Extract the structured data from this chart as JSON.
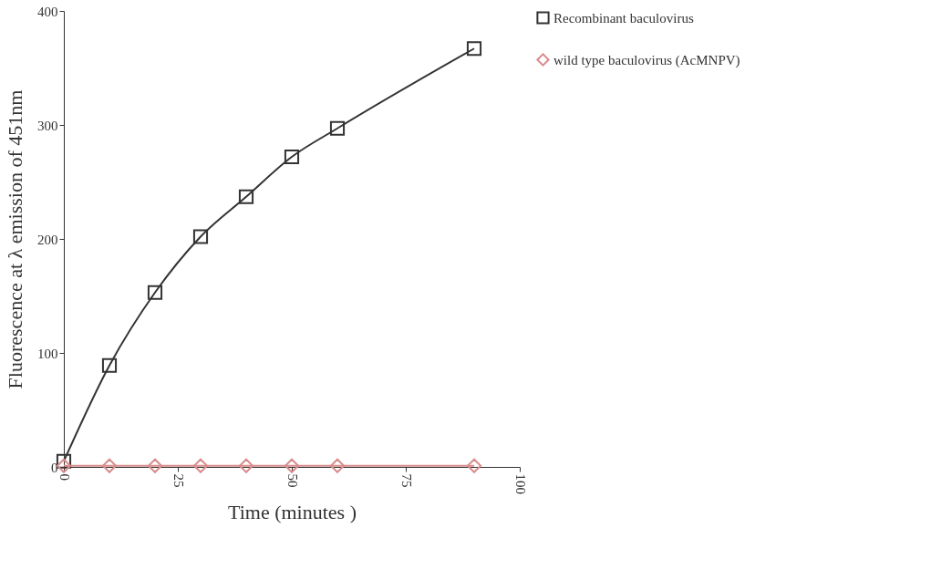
{
  "chart_data": {
    "type": "line",
    "xlabel": "Time (minutes )",
    "ylabel": "Fluorescence at λ emission of 451nm",
    "xlim": [
      0,
      100
    ],
    "xticks": [
      0,
      25,
      50,
      75,
      100
    ],
    "ylim": [
      0,
      400
    ],
    "yticks": [
      0,
      100,
      200,
      300,
      400
    ],
    "grid": false,
    "legend": "right",
    "line_style": "solid",
    "series": [
      {
        "name": "Recombinant baculovirus",
        "color": "#333333",
        "marker": "square",
        "x": [
          0,
          10,
          20,
          30,
          40,
          50,
          60,
          90
        ],
        "values": [
          5,
          89,
          153,
          202,
          237,
          272,
          297,
          367
        ]
      },
      {
        "name": "wild type baculovirus (AcMNPV)",
        "color": "#d98c8c",
        "marker": "diamond",
        "x": [
          0,
          10,
          20,
          30,
          40,
          50,
          60,
          90
        ],
        "values": [
          1,
          1,
          1,
          1,
          1,
          1,
          1,
          1
        ]
      }
    ]
  }
}
